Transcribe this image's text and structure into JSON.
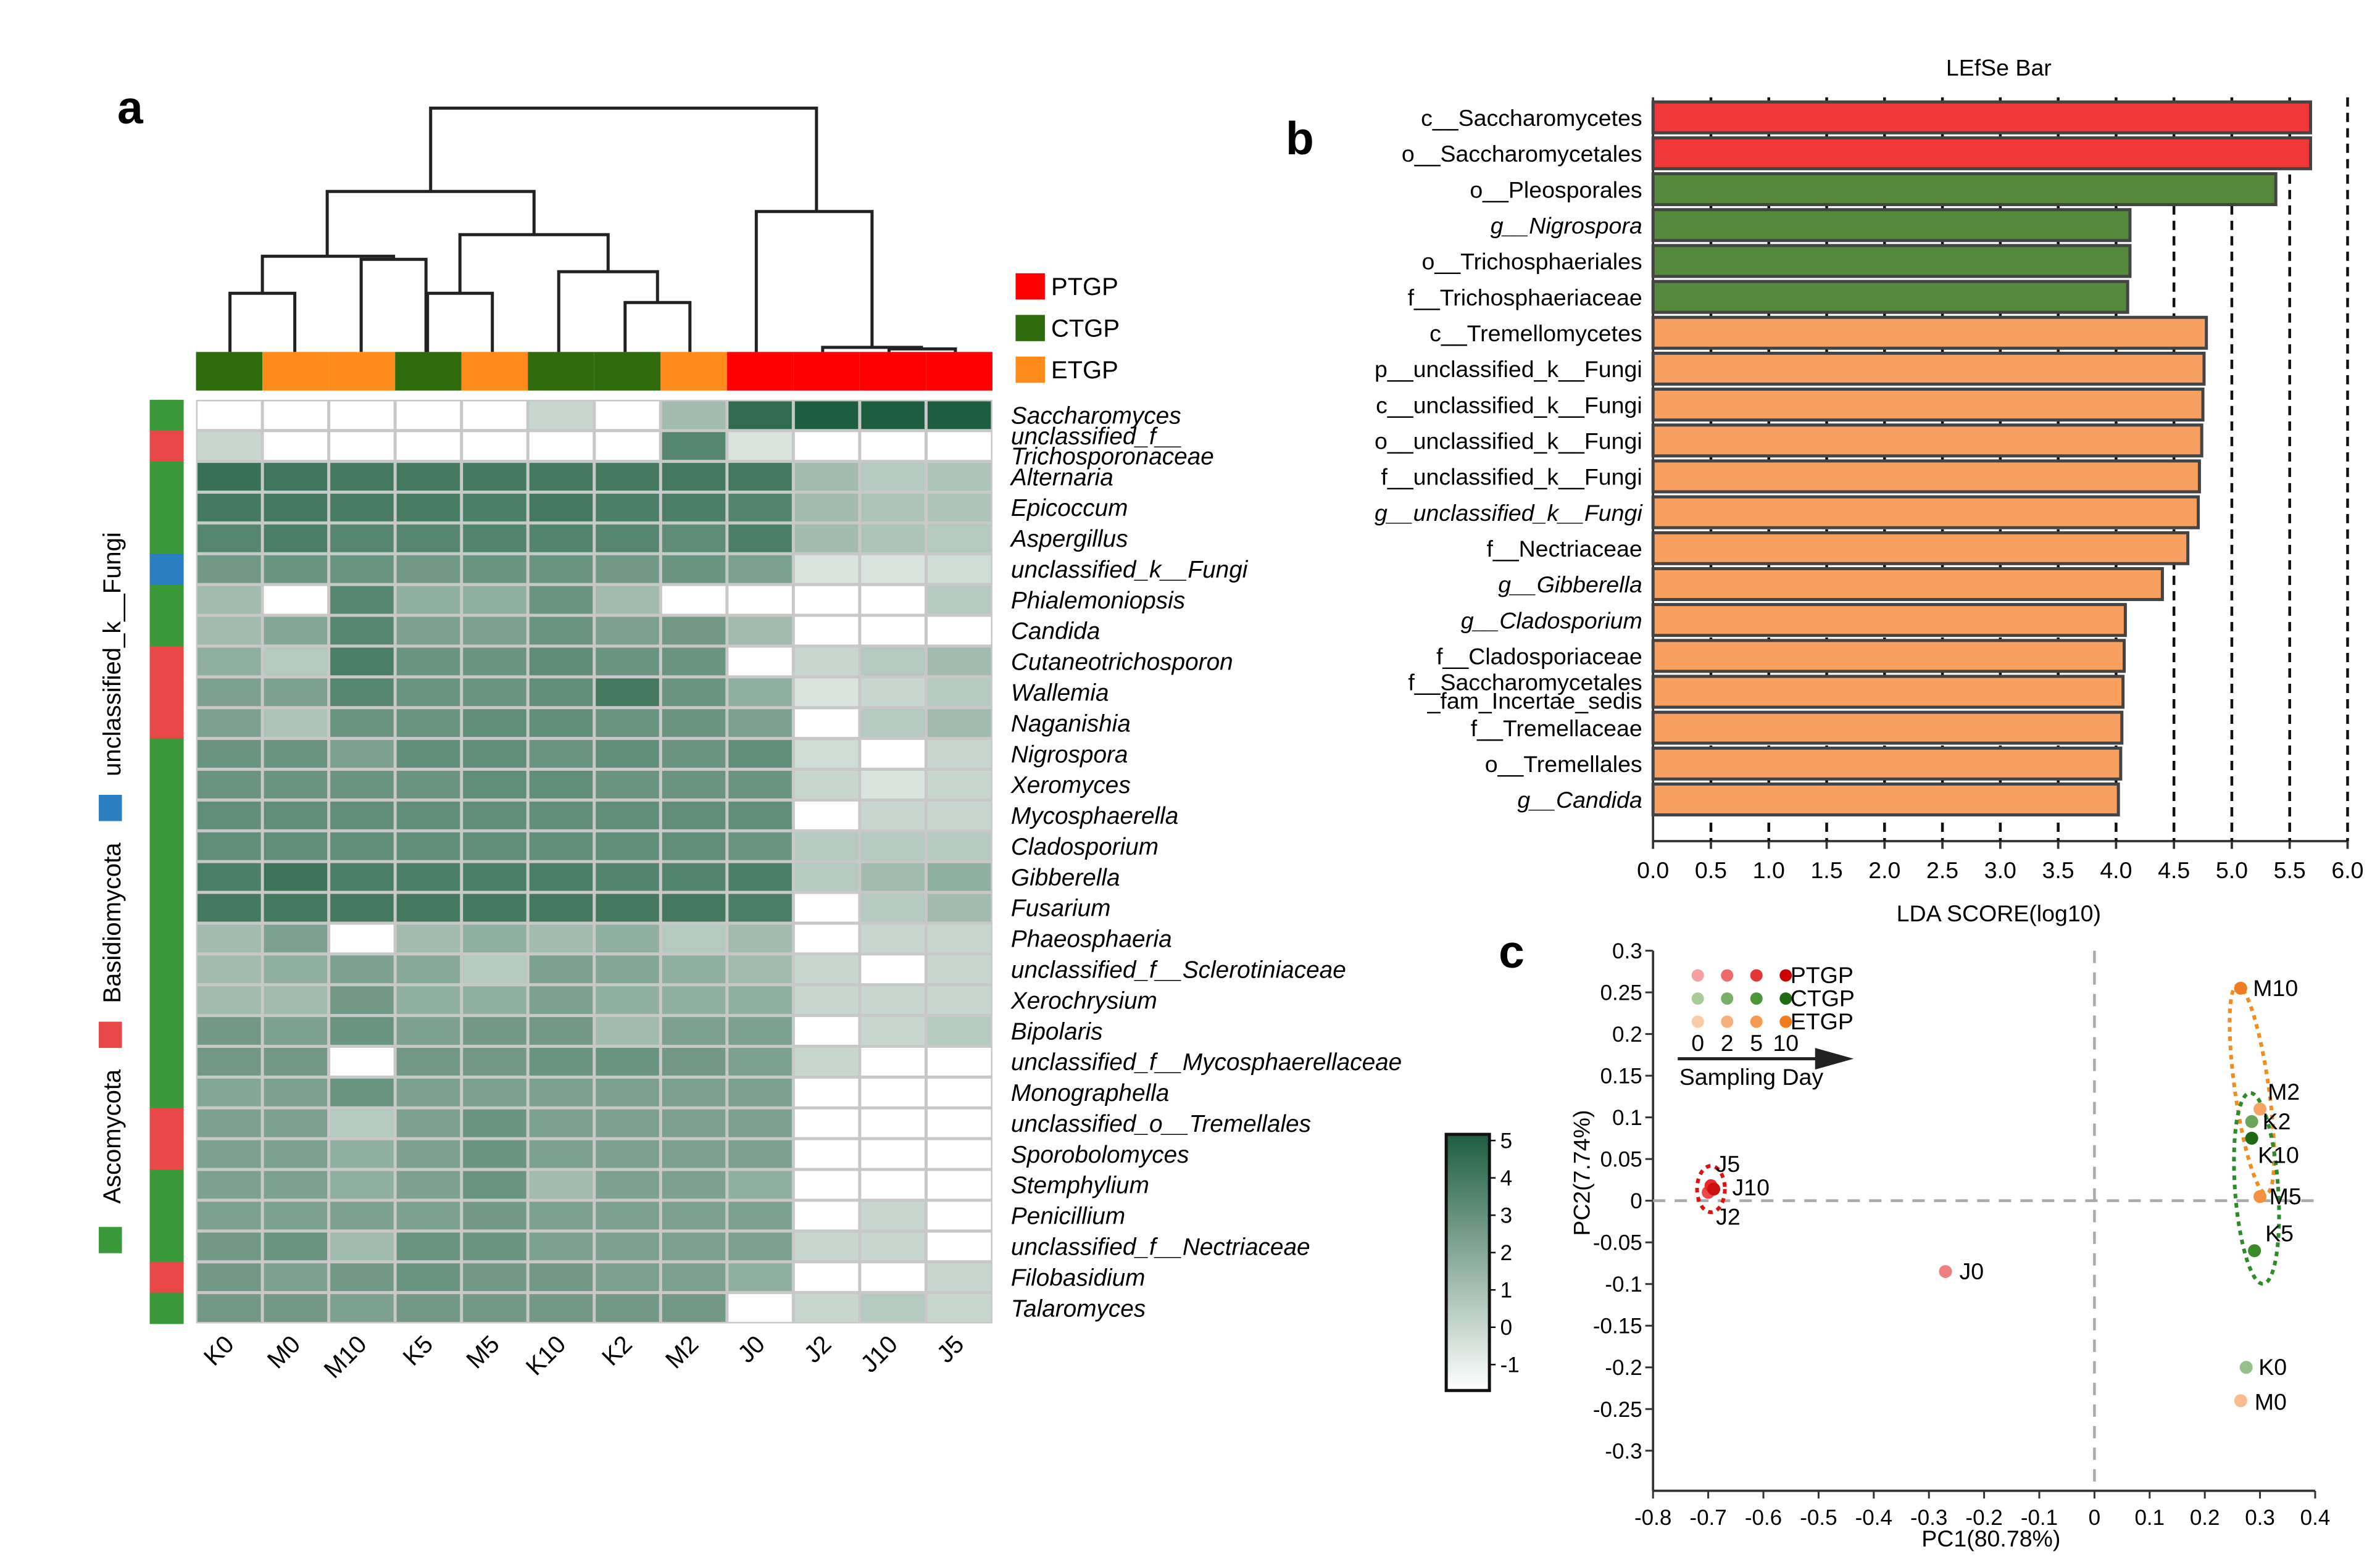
{
  "panel_labels": {
    "a": "a",
    "b": "b",
    "c": "c"
  },
  "chart_data": [
    {
      "type": "heatmap",
      "columns": [
        "K0",
        "M0",
        "M10",
        "K5",
        "M5",
        "K10",
        "K2",
        "M2",
        "J0",
        "J2",
        "J10",
        "J5"
      ],
      "column_groups": [
        "CTGP",
        "ETGP",
        "ETGP",
        "CTGP",
        "ETGP",
        "CTGP",
        "CTGP",
        "ETGP",
        "PTGP",
        "PTGP",
        "PTGP",
        "PTGP"
      ],
      "group_legend": [
        {
          "name": "PTGP",
          "color": "#ff0000"
        },
        {
          "name": "CTGP",
          "color": "#2e6b0c"
        },
        {
          "name": "ETGP",
          "color": "#ff8c1a"
        }
      ],
      "phylum_legend": [
        {
          "name": "Ascomycota",
          "color": "#3a9a3a"
        },
        {
          "name": "Basidiomycota",
          "color": "#e84848"
        },
        {
          "name": "unclassified_k__Fungi",
          "color": "#2a7ec2"
        }
      ],
      "rows": [
        "Saccharomyces",
        "unclassified_f__Trichosporonaceae",
        "Alternaria",
        "Epicoccum",
        "Aspergillus",
        "unclassified_k__Fungi",
        "Phialemoniopsis",
        "Candida",
        "Cutaneotrichosporon",
        "Wallemia",
        "Naganishia",
        "Nigrospora",
        "Xeromyces",
        "Mycosphaerella",
        "Cladosporium",
        "Gibberella",
        "Fusarium",
        "Phaeosphaeria",
        "unclassified_f__Sclerotiniaceae",
        "Xerochrysium",
        "Bipolaris",
        "unclassified_f__Mycosphaerellaceae",
        "Monographella",
        "unclassified_o__Tremellales",
        "Sporobolomyces",
        "Stemphylium",
        "Penicillium",
        "unclassified_f__Nectriaceae",
        "Filobasidium",
        "Talaromyces"
      ],
      "row_label_lines": [
        [
          "Saccharomyces"
        ],
        [
          "unclassified_f__",
          "Trichosporonaceae"
        ],
        [
          "Alternaria"
        ],
        [
          "Epicoccum"
        ],
        [
          "Aspergillus"
        ],
        [
          "unclassified_k__Fungi"
        ],
        [
          "Phialemoniopsis"
        ],
        [
          "Candida"
        ],
        [
          "Cutaneotrichosporon"
        ],
        [
          "Wallemia"
        ],
        [
          "Naganishia"
        ],
        [
          "Nigrospora"
        ],
        [
          "Xeromyces"
        ],
        [
          "Mycosphaerella"
        ],
        [
          "Cladosporium"
        ],
        [
          "Gibberella"
        ],
        [
          "Fusarium"
        ],
        [
          "Phaeosphaeria"
        ],
        [
          "unclassified_f__Sclerotiniaceae"
        ],
        [
          "Xerochrysium"
        ],
        [
          "Bipolaris"
        ],
        [
          "unclassified_f__Mycosphaerellaceae"
        ],
        [
          "Monographella"
        ],
        [
          "unclassified_o__Tremellales"
        ],
        [
          "Sporobolomyces"
        ],
        [
          "Stemphylium"
        ],
        [
          "Penicillium"
        ],
        [
          "unclassified_f__Nectriaceae"
        ],
        [
          "Filobasidium"
        ],
        [
          "Talaromyces"
        ]
      ],
      "row_phylum": [
        "Ascomycota",
        "Basidiomycota",
        "Ascomycota",
        "Ascomycota",
        "Ascomycota",
        "unclassified_k__Fungi",
        "Ascomycota",
        "Ascomycota",
        "Basidiomycota",
        "Basidiomycota",
        "Basidiomycota",
        "Ascomycota",
        "Ascomycota",
        "Ascomycota",
        "Ascomycota",
        "Ascomycota",
        "Ascomycota",
        "Ascomycota",
        "Ascomycota",
        "Ascomycota",
        "Ascomycota",
        "Ascomycota",
        "Ascomycota",
        "Basidiomycota",
        "Basidiomycota",
        "Ascomycota",
        "Ascomycota",
        "Ascomycota",
        "Basidiomycota",
        "Ascomycota"
      ],
      "values": [
        [
          -1,
          -1,
          -1,
          -1,
          -1,
          0.5,
          -1,
          1.5,
          4.5,
          5,
          5,
          5
        ],
        [
          0.5,
          -1,
          -1,
          -1,
          -1,
          -1,
          -1,
          3.5,
          0,
          -1,
          -1,
          -1
        ],
        [
          4.3,
          4.1,
          4,
          4,
          4,
          4,
          4,
          4,
          4,
          1.5,
          1,
          1.2
        ],
        [
          4,
          4,
          3.9,
          3.9,
          3.8,
          4,
          3.8,
          3.8,
          3.6,
          1.5,
          1.2,
          1.2
        ],
        [
          3.5,
          3.8,
          3.5,
          3.5,
          3.6,
          3.6,
          3.5,
          3.3,
          3.8,
          1.5,
          1.2,
          1
        ],
        [
          2.8,
          3,
          3,
          2.8,
          3,
          3,
          2.8,
          3,
          2.5,
          0,
          0,
          0.3
        ],
        [
          1.5,
          -1,
          3.5,
          2,
          2,
          3,
          1.5,
          -1,
          -1,
          -1,
          -1,
          1
        ],
        [
          1.5,
          2.3,
          3.5,
          2.5,
          2.5,
          3,
          2.5,
          2.8,
          1.5,
          -1,
          -1,
          -1
        ],
        [
          2,
          1,
          3.8,
          3,
          3,
          3.3,
          3,
          3,
          -1,
          0.5,
          1,
          1.5
        ],
        [
          2.5,
          2.5,
          3.5,
          3,
          3,
          3.2,
          4,
          3,
          2,
          0,
          0.5,
          1
        ],
        [
          2.5,
          1.2,
          3,
          3,
          3.2,
          3.2,
          3,
          3,
          2.5,
          -1,
          1,
          1.5
        ],
        [
          3,
          3,
          2.5,
          3.2,
          3.2,
          3,
          3.2,
          3,
          3.2,
          0.3,
          -1,
          0.5
        ],
        [
          3,
          3,
          3,
          3,
          3.2,
          3.2,
          3,
          3,
          3,
          0.5,
          0,
          0.5
        ],
        [
          3.2,
          3.2,
          3.2,
          3.2,
          3.2,
          3.2,
          3.2,
          3.2,
          3.2,
          -1,
          0.5,
          0.5
        ],
        [
          3.2,
          3.2,
          3.2,
          3.2,
          3.2,
          3.2,
          3.2,
          3.2,
          3,
          1,
          1,
          1
        ],
        [
          3.8,
          4.2,
          3.8,
          3.8,
          3.8,
          3.8,
          3.6,
          3.6,
          3.8,
          1,
          1.5,
          2
        ],
        [
          4,
          4,
          4,
          4,
          4,
          4,
          4,
          4,
          3.8,
          -1,
          1,
          1.5
        ],
        [
          1.5,
          2.5,
          -1,
          1.5,
          2,
          1.5,
          2,
          1,
          1.5,
          -1,
          0.5,
          0.5
        ],
        [
          1.5,
          2,
          2.5,
          2.2,
          1,
          2.5,
          2.3,
          2,
          1.5,
          0.5,
          -1,
          0.5
        ],
        [
          1.5,
          1.5,
          2.8,
          2,
          2,
          2.5,
          2,
          2,
          2,
          0.5,
          0.5,
          0.5
        ],
        [
          2.8,
          2.5,
          3,
          2.5,
          2.8,
          2.8,
          1.5,
          2.5,
          2.5,
          -1,
          0.5,
          1
        ],
        [
          2.8,
          2.8,
          -1,
          2.8,
          2.8,
          3,
          3,
          2.8,
          2.5,
          0.5,
          -1,
          -1
        ],
        [
          2.3,
          2.5,
          3,
          2.5,
          2.5,
          2.5,
          2.5,
          2.5,
          2.5,
          -1,
          -1,
          -1
        ],
        [
          2.5,
          2.5,
          1,
          2.5,
          3,
          2.5,
          2.5,
          2.5,
          2.5,
          -1,
          -1,
          -1
        ],
        [
          2.5,
          2.5,
          2,
          2.5,
          3,
          2.5,
          2.5,
          2.5,
          2.5,
          -1,
          -1,
          -1
        ],
        [
          2.5,
          2.5,
          2,
          2.5,
          3,
          1.5,
          2.5,
          2.5,
          2,
          -1,
          -1,
          -1
        ],
        [
          2.5,
          2.5,
          2.5,
          2.5,
          2.8,
          2.5,
          2.5,
          2.5,
          2.5,
          -1,
          0.5,
          -1
        ],
        [
          2.8,
          3,
          1.5,
          3,
          3,
          2.5,
          2.5,
          2.5,
          2.5,
          0.5,
          0.5,
          -1
        ],
        [
          2.8,
          2.5,
          2.8,
          3,
          2.8,
          2.8,
          2.5,
          2.5,
          2,
          -1,
          -1,
          0.5
        ],
        [
          2.8,
          2.8,
          2.5,
          2.8,
          2.8,
          2.8,
          2.8,
          2.8,
          -1,
          0.5,
          1,
          0.5
        ]
      ],
      "dendrogram_order": [
        "K0",
        "M0",
        "M10",
        "K5",
        "M5",
        "K10",
        "K2",
        "M2",
        "J0",
        "J2",
        "J10",
        "J5"
      ],
      "colorbar": {
        "min": -1,
        "max": 5,
        "ticks": [
          "5",
          "4",
          "3",
          "2",
          "1",
          "0",
          "-1"
        ],
        "low_color": "#ffffff",
        "high_color": "#1e5e40"
      }
    },
    {
      "type": "bar",
      "title": "LEfSe Bar",
      "orientation": "horizontal",
      "xlabel": "LDA SCORE(log10)",
      "xlim": [
        0,
        6.0
      ],
      "xticks": [
        "0.0",
        "0.5",
        "1.0",
        "1.5",
        "2.0",
        "2.5",
        "3.0",
        "3.5",
        "4.0",
        "4.5",
        "5.0",
        "5.5",
        "6.0"
      ],
      "dashed_gridlines": [
        0.5,
        1.0,
        1.5,
        2.0,
        2.5,
        3.0,
        3.5,
        4.0,
        4.5,
        5.0,
        5.5,
        6.0
      ],
      "categories": [
        [
          "c__Saccharomycetes"
        ],
        [
          "o__Saccharomycetales"
        ],
        [
          "o__Pleosporales"
        ],
        [
          "g__Nigrospora"
        ],
        [
          "o__Trichosphaeriales"
        ],
        [
          "f__Trichosphaeriaceae"
        ],
        [
          "c__Tremellomycetes"
        ],
        [
          "p__unclassified_k__Fungi"
        ],
        [
          "c__unclassified_k__Fungi"
        ],
        [
          "o__unclassified_k__Fungi"
        ],
        [
          "f__unclassified_k__Fungi"
        ],
        [
          "g__unclassified_k__Fungi"
        ],
        [
          "f__Nectriaceae"
        ],
        [
          "g__Gibberella"
        ],
        [
          "g__Cladosporium"
        ],
        [
          "f__Cladosporiaceae"
        ],
        [
          "f__Saccharomycetales",
          "_fam_Incertae_sedis"
        ],
        [
          "f__Tremellaceae"
        ],
        [
          "o__Tremellales"
        ],
        [
          "g__Candida"
        ]
      ],
      "italic": [
        false,
        false,
        false,
        true,
        false,
        false,
        false,
        false,
        false,
        false,
        false,
        true,
        false,
        true,
        true,
        false,
        false,
        false,
        false,
        true
      ],
      "values": [
        5.68,
        5.68,
        5.38,
        4.12,
        4.12,
        4.1,
        4.78,
        4.76,
        4.75,
        4.74,
        4.72,
        4.71,
        4.62,
        4.4,
        4.08,
        4.07,
        4.06,
        4.05,
        4.04,
        4.02
      ],
      "groups": [
        "PTGP",
        "PTGP",
        "CTGP",
        "CTGP",
        "CTGP",
        "CTGP",
        "ETGP",
        "ETGP",
        "ETGP",
        "ETGP",
        "ETGP",
        "ETGP",
        "ETGP",
        "ETGP",
        "ETGP",
        "ETGP",
        "ETGP",
        "ETGP",
        "ETGP",
        "ETGP"
      ],
      "group_colors": {
        "PTGP": "#f03838",
        "CTGP": "#558a3c",
        "ETGP": "#f8a060"
      }
    },
    {
      "type": "scatter",
      "xlabel": "PC1(80.78%)",
      "ylabel": "PC2(7.74%)",
      "xlim": [
        -0.8,
        0.4
      ],
      "ylim": [
        -0.3,
        0.3
      ],
      "xticks": [
        "-0.8",
        "-0.7",
        "-0.6",
        "-0.5",
        "-0.4",
        "-0.3",
        "-0.2",
        "-0.1",
        "0",
        "0.1",
        "0.2",
        "0.3",
        "0.4"
      ],
      "yticks": [
        "0.3",
        "0.25",
        "0.2",
        "0.15",
        "0.1",
        "0.05",
        "0",
        "-0.05",
        "-0.1",
        "-0.15",
        "-0.2",
        "-0.25",
        "-0.3"
      ],
      "points": [
        {
          "label": "J0",
          "x": -0.27,
          "y": -0.085,
          "group": "PTGP",
          "color": "#ee7f7f"
        },
        {
          "label": "J2",
          "x": -0.7,
          "y": 0.01,
          "group": "PTGP",
          "color": "#ee4a4a"
        },
        {
          "label": "J5",
          "x": -0.695,
          "y": 0.018,
          "group": "PTGP",
          "color": "#e52b2b"
        },
        {
          "label": "J10",
          "x": -0.69,
          "y": 0.014,
          "group": "PTGP",
          "color": "#cc1010"
        },
        {
          "label": "K0",
          "x": 0.275,
          "y": -0.2,
          "group": "CTGP",
          "color": "#98bf88"
        },
        {
          "label": "K2",
          "x": 0.285,
          "y": 0.095,
          "group": "CTGP",
          "color": "#6aa558"
        },
        {
          "label": "K5",
          "x": 0.29,
          "y": -0.06,
          "group": "CTGP",
          "color": "#3a8a2a"
        },
        {
          "label": "K10",
          "x": 0.285,
          "y": 0.075,
          "group": "CTGP",
          "color": "#1e6a10"
        },
        {
          "label": "M0",
          "x": 0.265,
          "y": -0.24,
          "group": "ETGP",
          "color": "#f8bc8e"
        },
        {
          "label": "M2",
          "x": 0.3,
          "y": 0.11,
          "group": "ETGP",
          "color": "#f6a464"
        },
        {
          "label": "M5",
          "x": 0.3,
          "y": 0.005,
          "group": "ETGP",
          "color": "#f49040"
        },
        {
          "label": "M10",
          "x": 0.265,
          "y": 0.255,
          "group": "ETGP",
          "color": "#f07c20"
        }
      ],
      "legend": {
        "groups": [
          {
            "name": "PTGP",
            "colors": [
              "#f4a0a0",
              "#ee6a6a",
              "#e53535",
              "#cc0000"
            ]
          },
          {
            "name": "CTGP",
            "colors": [
              "#a8cc98",
              "#7ab066",
              "#4a9638",
              "#1e6a10"
            ]
          },
          {
            "name": "ETGP",
            "colors": [
              "#fbcba5",
              "#f8b07a",
              "#f69a52",
              "#f07c20"
            ]
          }
        ],
        "day_labels": [
          "0",
          "2",
          "5",
          "10"
        ],
        "arrow_label": "Sampling Day"
      }
    }
  ]
}
